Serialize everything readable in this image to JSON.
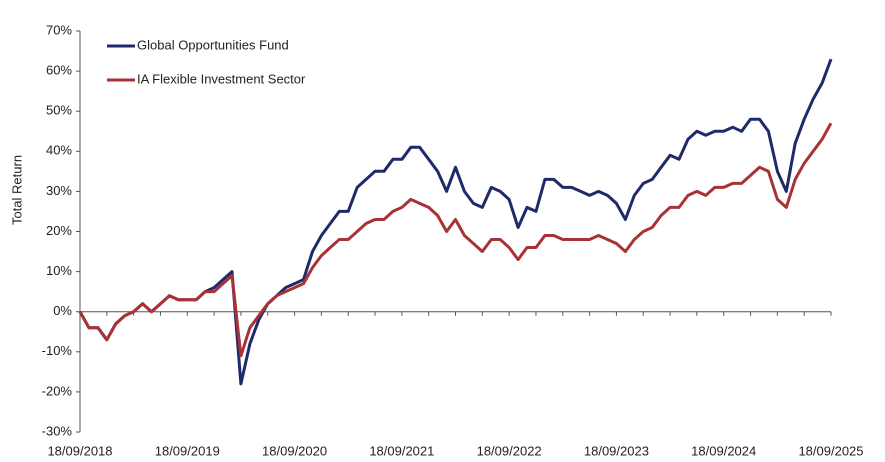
{
  "chart_data": {
    "type": "line",
    "y_label": "Total Return",
    "categories": [
      "18/09/2018",
      null,
      null,
      null,
      null,
      null,
      null,
      null,
      null,
      null,
      null,
      null,
      "18/09/2019",
      null,
      null,
      null,
      null,
      null,
      null,
      null,
      null,
      null,
      null,
      null,
      "18/09/2020",
      null,
      null,
      null,
      null,
      null,
      null,
      null,
      null,
      null,
      null,
      null,
      "18/09/2021",
      null,
      null,
      null,
      null,
      null,
      null,
      null,
      null,
      null,
      null,
      null,
      "18/09/2022",
      null,
      null,
      null,
      null,
      null,
      null,
      null,
      null,
      null,
      null,
      null,
      "18/09/2023",
      null,
      null,
      null,
      null,
      null,
      null,
      null,
      null,
      null,
      null,
      null,
      "18/09/2024",
      null,
      null,
      null,
      null,
      null,
      null,
      null,
      null,
      null,
      null,
      null,
      "18/09/2025"
    ],
    "series": [
      {
        "name": "Global Opportunities Fund",
        "color": "#1f2a6b",
        "values": [
          0,
          -4,
          -4,
          -7,
          -3,
          -1,
          0,
          2,
          0,
          2,
          4,
          3,
          3,
          3,
          5,
          6,
          8,
          10,
          -18,
          -8,
          -2,
          2,
          4,
          6,
          7,
          8,
          15,
          19,
          22,
          25,
          25,
          31,
          33,
          35,
          35,
          38,
          38,
          41,
          41,
          38,
          35,
          30,
          36,
          30,
          27,
          26,
          31,
          30,
          28,
          21,
          26,
          25,
          33,
          33,
          31,
          31,
          30,
          29,
          30,
          29,
          27,
          23,
          29,
          32,
          33,
          36,
          39,
          38,
          43,
          45,
          44,
          45,
          45,
          46,
          45,
          48,
          48,
          45,
          35,
          30,
          42,
          48,
          53,
          57,
          63
        ]
      },
      {
        "name": "IA Flexible Investment Sector",
        "color": "#a83236",
        "values": [
          0,
          -4,
          -4,
          -7,
          -3,
          -1,
          0,
          2,
          0,
          2,
          4,
          3,
          3,
          3,
          5,
          5,
          7,
          9,
          -11,
          -4,
          -1,
          2,
          4,
          5,
          6,
          7,
          11,
          14,
          16,
          18,
          18,
          20,
          22,
          23,
          23,
          25,
          26,
          28,
          27,
          26,
          24,
          20,
          23,
          19,
          17,
          15,
          18,
          18,
          16,
          13,
          16,
          16,
          19,
          19,
          18,
          18,
          18,
          18,
          19,
          18,
          17,
          15,
          18,
          20,
          21,
          24,
          26,
          26,
          29,
          30,
          29,
          31,
          31,
          32,
          32,
          34,
          36,
          35,
          28,
          26,
          33,
          37,
          40,
          43,
          47
        ]
      }
    ],
    "ylim": [
      -30,
      70
    ],
    "yticks": [
      {
        "value": -30,
        "label": "-30%"
      },
      {
        "value": -20,
        "label": "-20%"
      },
      {
        "value": -10,
        "label": "-10%"
      },
      {
        "value": 0,
        "label": "0%"
      },
      {
        "value": 10,
        "label": "10%"
      },
      {
        "value": 20,
        "label": "20%"
      },
      {
        "value": 30,
        "label": "30%"
      },
      {
        "value": 40,
        "label": "40%"
      },
      {
        "value": 50,
        "label": "50%"
      },
      {
        "value": 60,
        "label": "60%"
      },
      {
        "value": 70,
        "label": "70%"
      }
    ],
    "legend": "top-left"
  }
}
